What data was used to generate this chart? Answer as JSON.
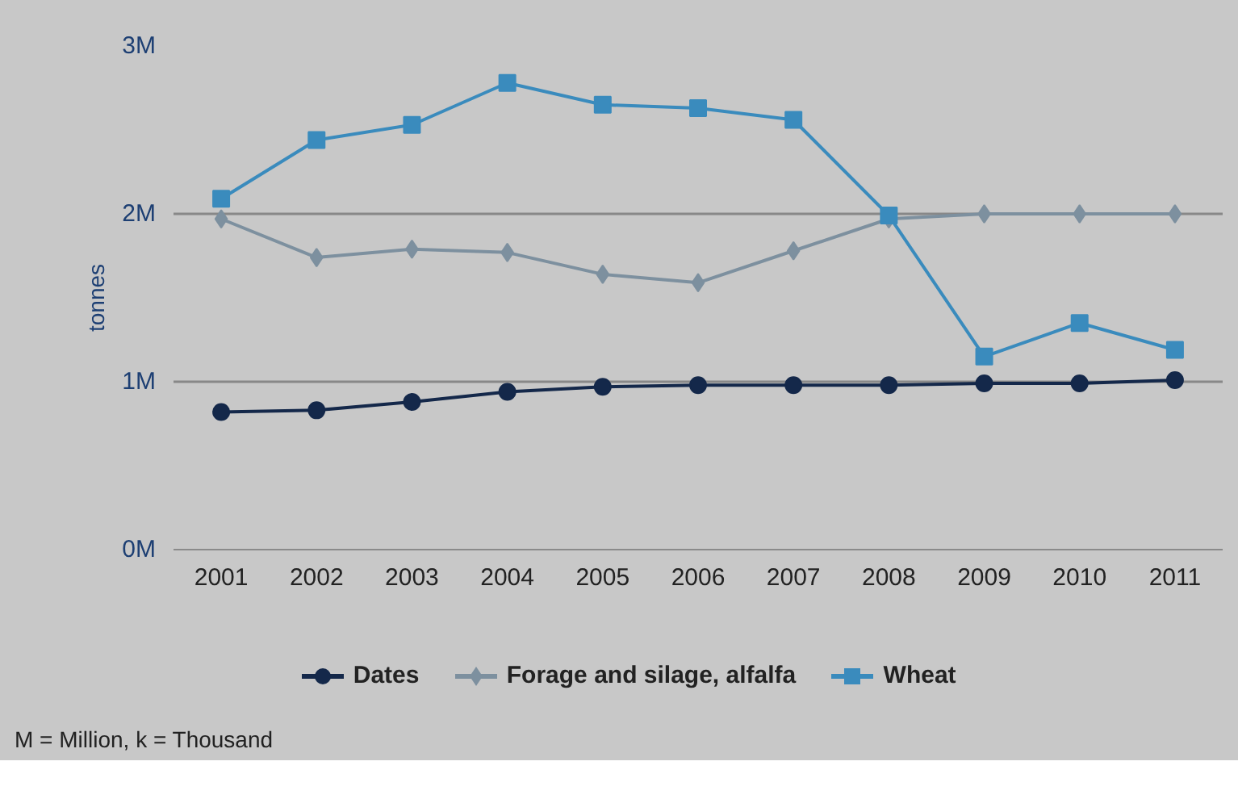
{
  "chart_data": {
    "type": "line",
    "ylabel": "tonnes",
    "categories": [
      "2001",
      "2002",
      "2003",
      "2004",
      "2005",
      "2006",
      "2007",
      "2008",
      "2009",
      "2010",
      "2011"
    ],
    "series": [
      {
        "name": "Dates",
        "color": "#14284a",
        "marker": "circle",
        "values": [
          0.82,
          0.83,
          0.88,
          0.94,
          0.97,
          0.98,
          0.98,
          0.98,
          0.99,
          0.99,
          1.01
        ]
      },
      {
        "name": "Forage and silage, alfalfa",
        "color": "#7d909f",
        "marker": "diamond",
        "values": [
          1.97,
          1.74,
          1.79,
          1.77,
          1.64,
          1.59,
          1.78,
          1.97,
          2.0,
          2.0,
          2.0
        ]
      },
      {
        "name": "Wheat",
        "color": "#3a8bbd",
        "marker": "square",
        "values": [
          2.09,
          2.44,
          2.53,
          2.78,
          2.65,
          2.63,
          2.56,
          1.99,
          1.15,
          1.35,
          1.19
        ]
      }
    ],
    "ylim": [
      0,
      3
    ],
    "yticks": [
      {
        "value": 0,
        "label": "0M"
      },
      {
        "value": 1,
        "label": "1M"
      },
      {
        "value": 2,
        "label": "2M"
      },
      {
        "value": 3,
        "label": "3M"
      }
    ],
    "grid": "y",
    "legend": "bottom",
    "annotations": [
      "M = Million, k = Thousand"
    ]
  }
}
